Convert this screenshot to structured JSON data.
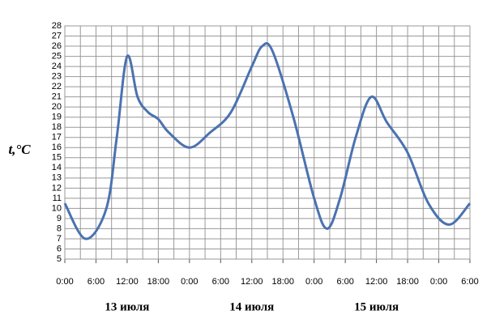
{
  "chart_data": {
    "type": "line",
    "y_label": "t,°C",
    "x": [
      0,
      4,
      8,
      10,
      12,
      14,
      16,
      18,
      20,
      24,
      28,
      32,
      36,
      38,
      40,
      44,
      48,
      50.5,
      53,
      56,
      59,
      62,
      66,
      70,
      74,
      78
    ],
    "series": [
      {
        "name": "t",
        "color": "#4a72b0",
        "values": [
          10.5,
          7,
          10,
          17,
          25,
          21,
          19.5,
          18.8,
          17.5,
          16,
          17.5,
          19.5,
          24,
          26,
          25.5,
          19,
          11,
          8,
          11,
          17,
          21,
          18.5,
          15.5,
          10.5,
          8.4,
          10.5
        ]
      }
    ],
    "xlim": [
      0,
      78
    ],
    "xticks": [
      {
        "value": 0,
        "label": "0:00"
      },
      {
        "value": 6,
        "label": "6:00"
      },
      {
        "value": 12,
        "label": "12:00"
      },
      {
        "value": 18,
        "label": "18:00"
      },
      {
        "value": 24,
        "label": "0:00"
      },
      {
        "value": 30,
        "label": "6:00"
      },
      {
        "value": 36,
        "label": "12:00"
      },
      {
        "value": 42,
        "label": "18:00"
      },
      {
        "value": 48,
        "label": "0:00"
      },
      {
        "value": 54,
        "label": "6:00"
      },
      {
        "value": 60,
        "label": "12:00"
      },
      {
        "value": 66,
        "label": "18:00"
      },
      {
        "value": 72,
        "label": "0:00"
      },
      {
        "value": 78,
        "label": "6:00"
      }
    ],
    "minor_grid_step": 3,
    "day_labels": [
      {
        "value": 12,
        "label": "13 июля"
      },
      {
        "value": 36,
        "label": "14 июля"
      },
      {
        "value": 60,
        "label": "15 июля"
      }
    ],
    "ylim": [
      5,
      28
    ],
    "yticks": [
      5,
      6,
      7,
      8,
      9,
      10,
      11,
      12,
      13,
      14,
      15,
      16,
      17,
      18,
      19,
      20,
      21,
      22,
      23,
      24,
      25,
      26,
      27,
      28
    ],
    "grid": true
  }
}
